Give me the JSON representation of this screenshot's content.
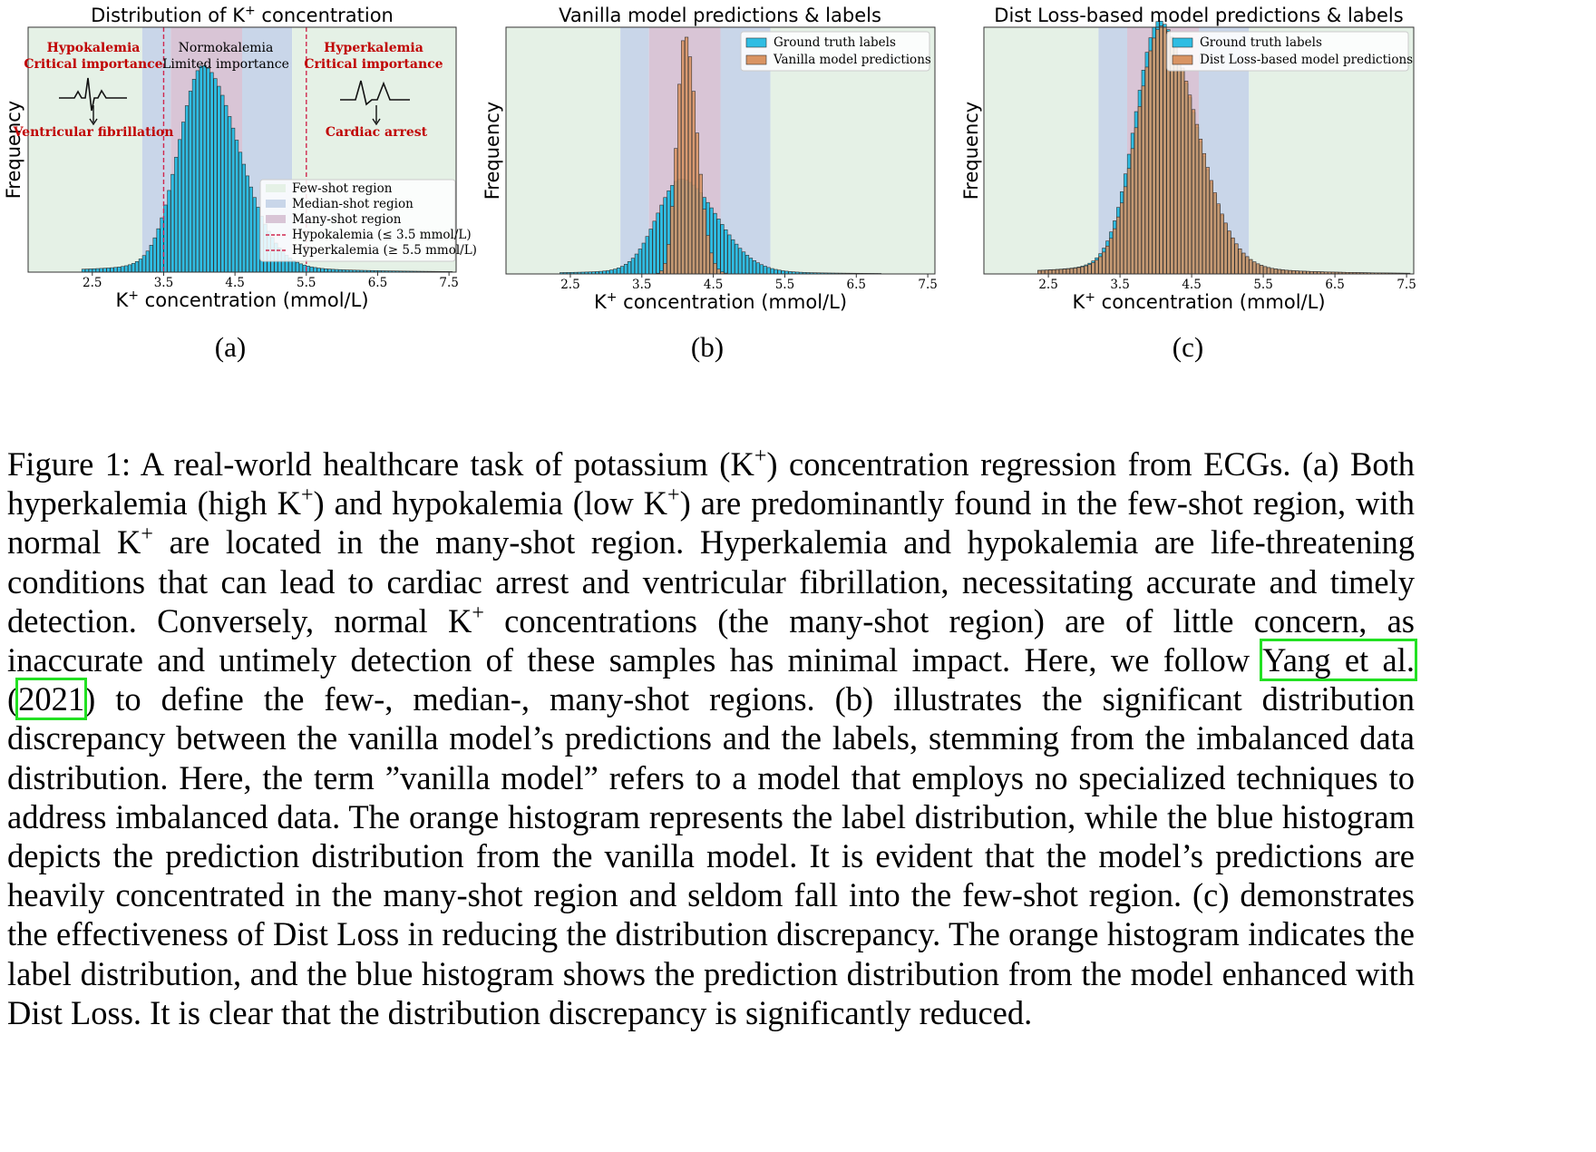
{
  "figure": {
    "panels": [
      {
        "id": "a",
        "sublabel": "(a)",
        "title": "Distribution of K⁺ concentration",
        "xlabel": "K⁺ concentration (mmol/L)",
        "ylabel": "Frequency",
        "regions": {
          "left": {
            "title": "Hypokalemia",
            "subtitle": "Critical importance",
            "outcome": "Ventricular fibrillation"
          },
          "middle": {
            "title": "Normokalemia",
            "subtitle": "Limited importance"
          },
          "right": {
            "title": "Hyperkalemia",
            "subtitle": "Critical importance",
            "outcome": "Cardiac arrest"
          }
        },
        "legend": [
          "Few-shot region",
          "Median-shot region",
          "Many-shot region",
          "Hypokalemia (≤ 3.5 mmol/L)",
          "Hyperkalemia (≥ 5.5 mmol/L)"
        ]
      },
      {
        "id": "b",
        "sublabel": "(b)",
        "title": "Vanilla model predictions & labels",
        "xlabel": "K⁺ concentration (mmol/L)",
        "ylabel": "Frequency",
        "legend": [
          "Ground truth labels",
          "Vanilla model predictions"
        ]
      },
      {
        "id": "c",
        "sublabel": "(c)",
        "title": "Dist Loss-based model predictions & labels",
        "xlabel": "K⁺ concentration (mmol/L)",
        "ylabel": "Frequency",
        "legend": [
          "Ground truth labels",
          "Dist Loss-based model predictions"
        ]
      }
    ],
    "colors": {
      "few_shot": "#e5f1e6",
      "median_shot": "#c9d6e9",
      "many_shot": "#d9c5d6",
      "labels_bar": "#2fbde3",
      "pred_bar": "#d99463",
      "threshold_line": "#d0284e",
      "annotation_red": "#c00000"
    }
  },
  "chart_data": [
    {
      "type": "bar",
      "panel": "a",
      "title": "Distribution of K⁺ concentration",
      "xlabel": "K⁺ concentration (mmol/L)",
      "ylabel": "Frequency",
      "xlim": [
        1.6,
        7.6
      ],
      "xticks": [
        2.5,
        3.5,
        4.5,
        5.5,
        6.5,
        7.5
      ],
      "ylim": [
        0,
        1
      ],
      "regions": [
        {
          "name": "Few-shot region",
          "from": 1.6,
          "to": 3.2
        },
        {
          "name": "Median-shot region",
          "from": 3.2,
          "to": 3.6
        },
        {
          "name": "Many-shot region",
          "from": 3.6,
          "to": 4.6
        },
        {
          "name": "Median-shot region",
          "from": 4.6,
          "to": 5.3
        },
        {
          "name": "Few-shot region",
          "from": 5.3,
          "to": 7.6
        }
      ],
      "thresholds": [
        3.5,
        5.5
      ],
      "legend_position": "lower-right",
      "bin_width": 0.05,
      "series": [
        {
          "name": "",
          "mu": 4.05,
          "sigma_left": 0.34,
          "sigma_right": 0.5,
          "tail_weight": 0.07,
          "tail_scale": 1.1,
          "peak": 0.79
        }
      ]
    },
    {
      "type": "bar",
      "panel": "b",
      "title": "Vanilla model predictions & labels",
      "xlabel": "K⁺ concentration (mmol/L)",
      "ylabel": "Frequency",
      "xlim": [
        1.6,
        7.6
      ],
      "xticks": [
        2.5,
        3.5,
        4.5,
        5.5,
        6.5,
        7.5
      ],
      "ylim": [
        0,
        1
      ],
      "regions": [
        {
          "name": "Few-shot region",
          "from": 1.6,
          "to": 3.2
        },
        {
          "name": "Median-shot region",
          "from": 3.2,
          "to": 3.6
        },
        {
          "name": "Many-shot region",
          "from": 3.6,
          "to": 4.6
        },
        {
          "name": "Median-shot region",
          "from": 4.6,
          "to": 5.3
        },
        {
          "name": "Few-shot region",
          "from": 5.3,
          "to": 7.6
        }
      ],
      "legend_position": "top-right",
      "bin_width": 0.05,
      "series": [
        {
          "name": "Ground truth labels",
          "mu": 4.05,
          "sigma_left": 0.34,
          "sigma_right": 0.5,
          "tail_weight": 0.07,
          "tail_scale": 1.1,
          "peak": 0.36
        },
        {
          "name": "Vanilla model predictions",
          "mu": 4.1,
          "sigma_left": 0.11,
          "sigma_right": 0.17,
          "tail_weight": 0.0,
          "tail_scale": 0.5,
          "peak": 0.97
        }
      ]
    },
    {
      "type": "bar",
      "panel": "c",
      "title": "Dist Loss-based model predictions & labels",
      "xlabel": "K⁺ concentration (mmol/L)",
      "ylabel": "Frequency",
      "xlim": [
        1.6,
        7.6
      ],
      "xticks": [
        2.5,
        3.5,
        4.5,
        5.5,
        6.5,
        7.5
      ],
      "ylim": [
        0,
        1
      ],
      "regions": [
        {
          "name": "Few-shot region",
          "from": 1.6,
          "to": 3.2
        },
        {
          "name": "Median-shot region",
          "from": 3.2,
          "to": 3.6
        },
        {
          "name": "Many-shot region",
          "from": 3.6,
          "to": 4.6
        },
        {
          "name": "Median-shot region",
          "from": 4.6,
          "to": 5.3
        },
        {
          "name": "Few-shot region",
          "from": 5.3,
          "to": 7.6
        }
      ],
      "legend_position": "top-right",
      "bin_width": 0.05,
      "series": [
        {
          "name": "Ground truth labels",
          "mu": 4.05,
          "sigma_left": 0.34,
          "sigma_right": 0.5,
          "tail_weight": 0.07,
          "tail_scale": 1.1,
          "peak": 0.96
        },
        {
          "name": "Dist Loss-based model predictions",
          "mu": 4.08,
          "sigma_left": 0.34,
          "sigma_right": 0.49,
          "tail_weight": 0.07,
          "tail_scale": 1.1,
          "peak": 0.94
        }
      ]
    }
  ],
  "caption": {
    "fig_label": "Figure 1:",
    "p1": "A real-world healthcare task of potassium (K",
    "sup": "+",
    "p2": ") concentration regression from ECGs. (a) Both hyperkalemia (high K",
    "p3": ") and hypokalemia (low K",
    "p4": ") are predominantly found in the few-shot region, with normal K",
    "p5": " are located in the many-shot region. Hyperkalemia and hypokalemia are life-threatening conditions that can lead to cardiac arrest and ventricular fibrillation, necessitating accurate and timely detection. Conversely, normal K",
    "p6": " concentrations (the many-shot region) are of little concern, as inaccurate and untimely detection of these samples has minimal impact. Here, we follow ",
    "cite_author": "Yang et al.",
    "cite_open": " (",
    "cite_year": "2021",
    "cite_close": ")",
    "p7": " to define the few-, median-, many-shot regions. (b) illustrates the significant distribution discrepancy between the vanilla model’s predictions and the labels, stemming from the imbalanced data distribution. Here, the term ”vanilla model” refers to a model that employs no specialized techniques to address imbalanced data. The orange histogram represents the label distribution, while the blue histogram depicts the prediction distribution from the vanilla model. It is evident that the model’s predictions are heavily concentrated in the many-shot region and seldom fall into the few-shot region. (c) demonstrates the effectiveness of Dist Loss in reducing the distribution discrepancy. The orange histogram indicates the label distribution, and the blue histogram shows the prediction distribution from the model enhanced with Dist Loss. It is clear that the distribution discrepancy is significantly reduced."
  }
}
